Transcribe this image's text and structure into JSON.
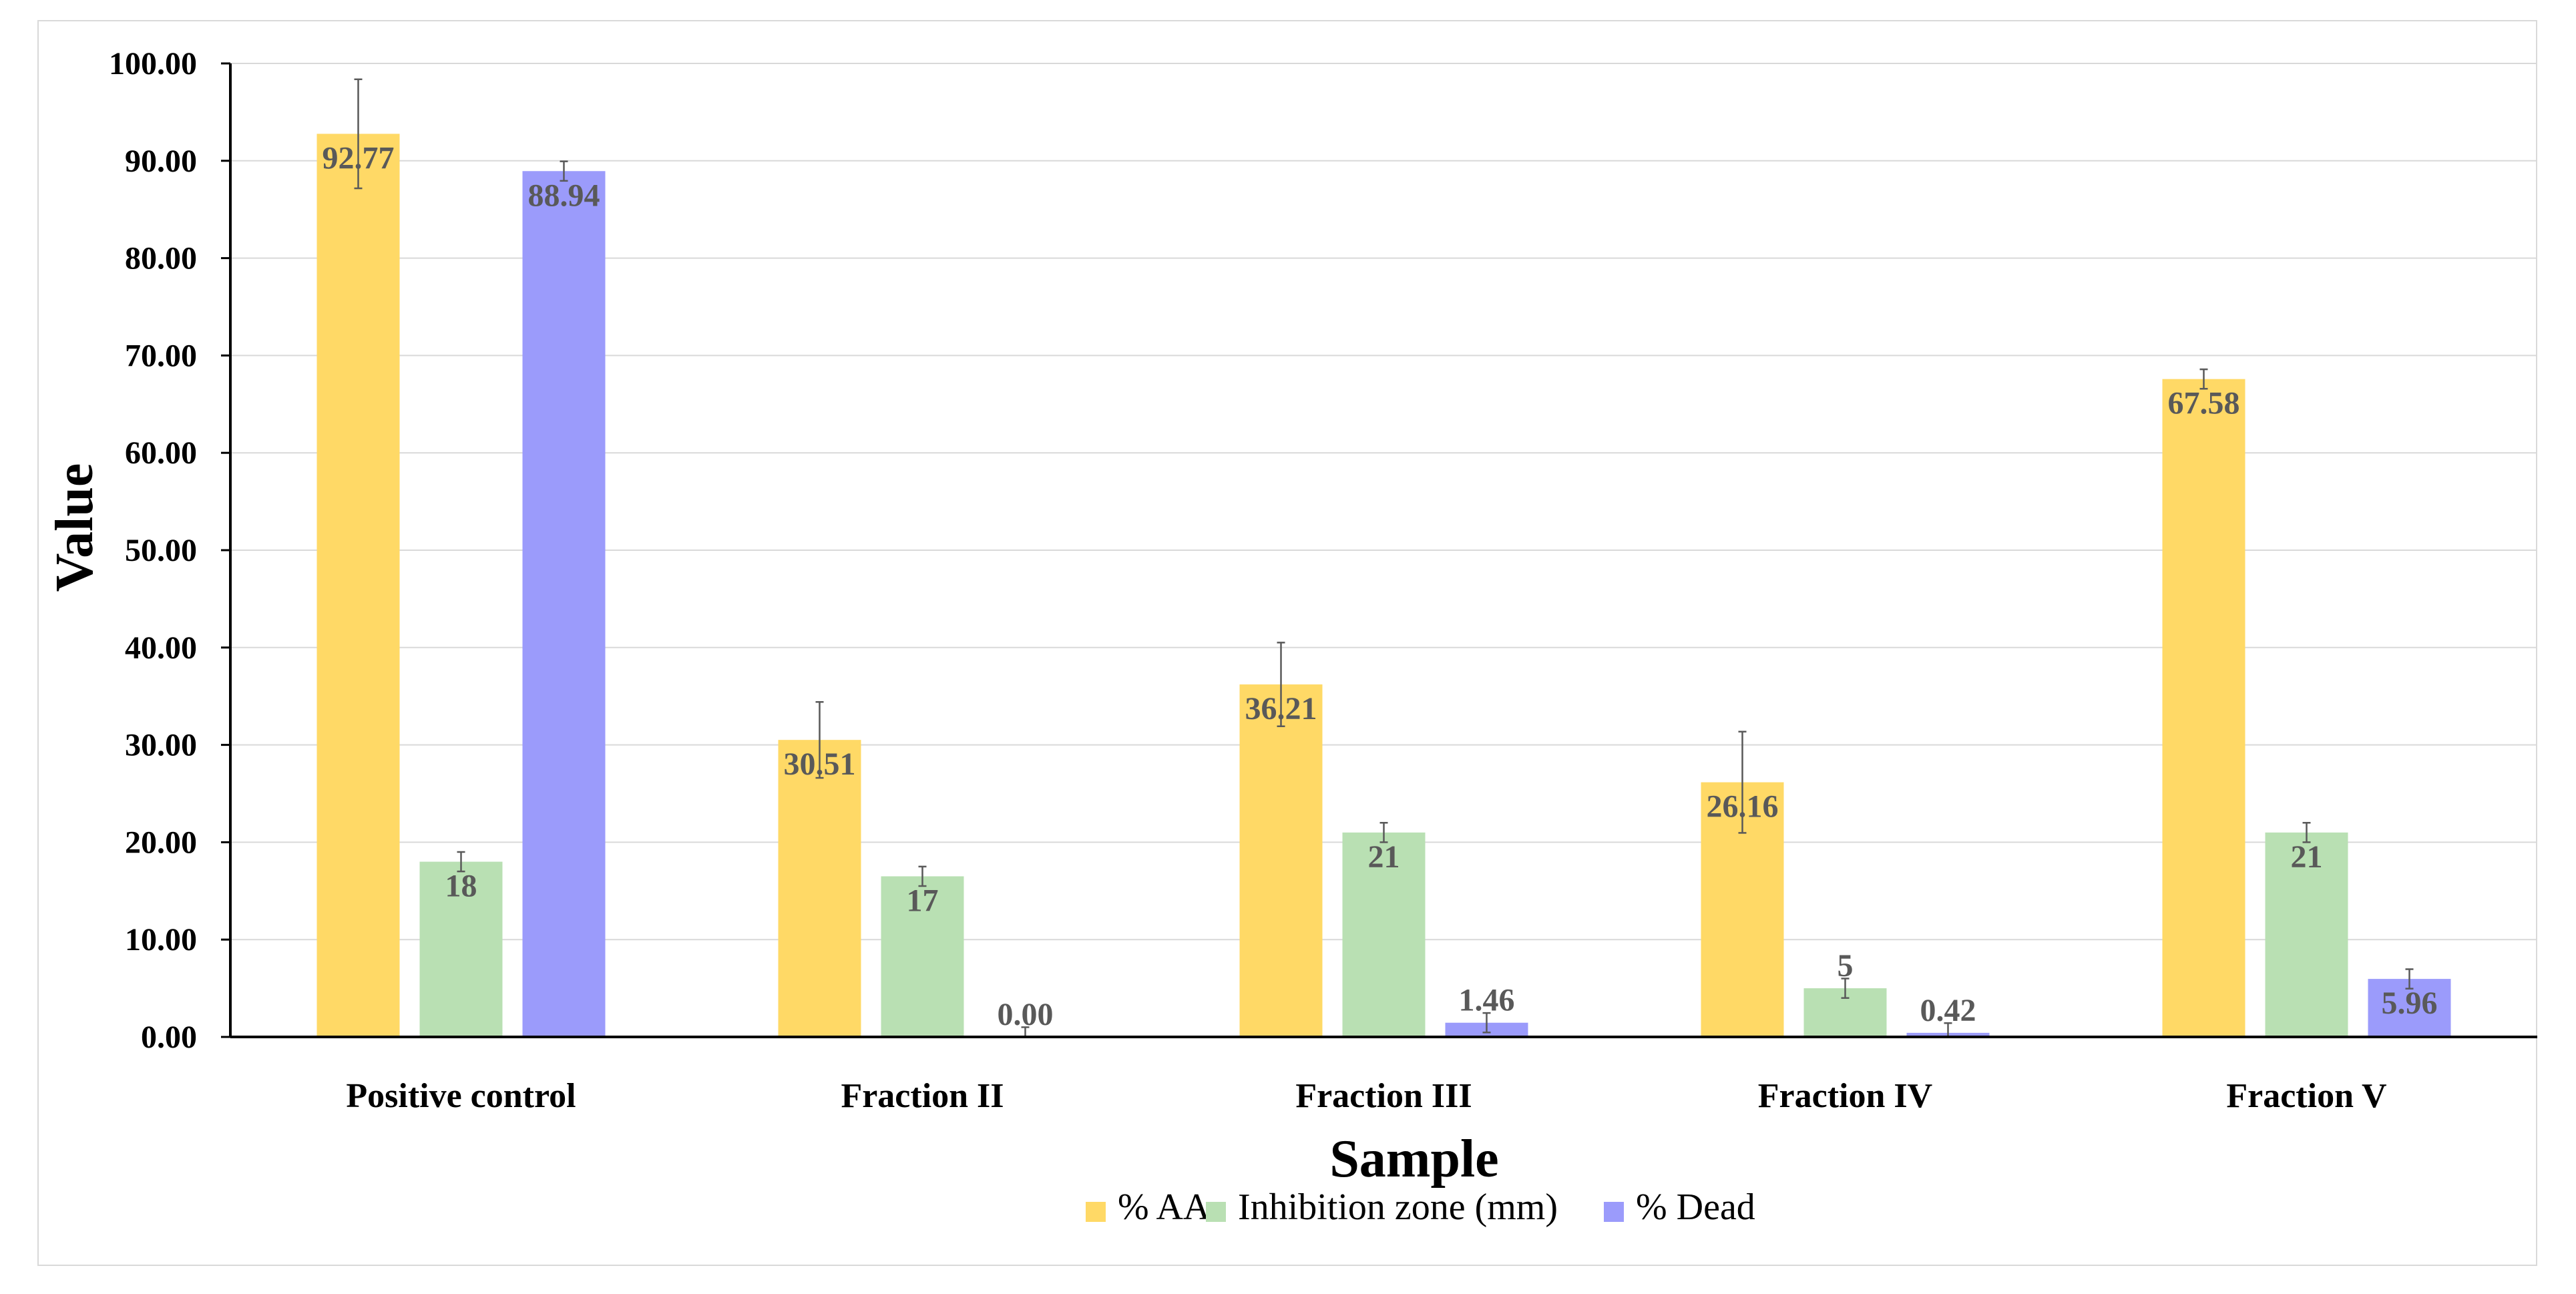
{
  "chart_data": {
    "type": "bar",
    "title": "",
    "xlabel": "Sample",
    "ylabel": "Value",
    "ylim": [
      0,
      100
    ],
    "yticks": [
      "0.00",
      "10.00",
      "20.00",
      "30.00",
      "40.00",
      "50.00",
      "60.00",
      "70.00",
      "80.00",
      "90.00",
      "100.00"
    ],
    "grid": true,
    "legend_position": "bottom",
    "categories": [
      "Positive control",
      "Fraction II",
      "Fraction III",
      "Fraction IV",
      "Fraction V"
    ],
    "series": [
      {
        "name": "% AA",
        "color": "#ffd966",
        "values": [
          92.77,
          30.51,
          36.21,
          26.16,
          67.58
        ],
        "labels": [
          "92.77",
          "30.51",
          "36.21",
          "26.16",
          "67.58"
        ],
        "errors": [
          5.6,
          3.9,
          4.3,
          5.2,
          1.0
        ]
      },
      {
        "name": "Inhibition zone (mm)",
        "color": "#b9e0b3",
        "values": [
          18,
          16.5,
          21,
          5,
          21
        ],
        "labels": [
          "18",
          "17",
          "21",
          "5",
          "21"
        ],
        "errors": [
          1.0,
          1.0,
          1.0,
          1.0,
          1.0
        ]
      },
      {
        "name": "% Dead",
        "color": "#9b9bfb",
        "values": [
          88.94,
          0.0,
          1.46,
          0.42,
          5.96
        ],
        "labels": [
          "88.94",
          "0.00",
          "1.46",
          "0.42",
          "5.96"
        ],
        "errors": [
          1.0,
          1.0,
          1.0,
          1.0,
          1.0
        ]
      }
    ]
  }
}
